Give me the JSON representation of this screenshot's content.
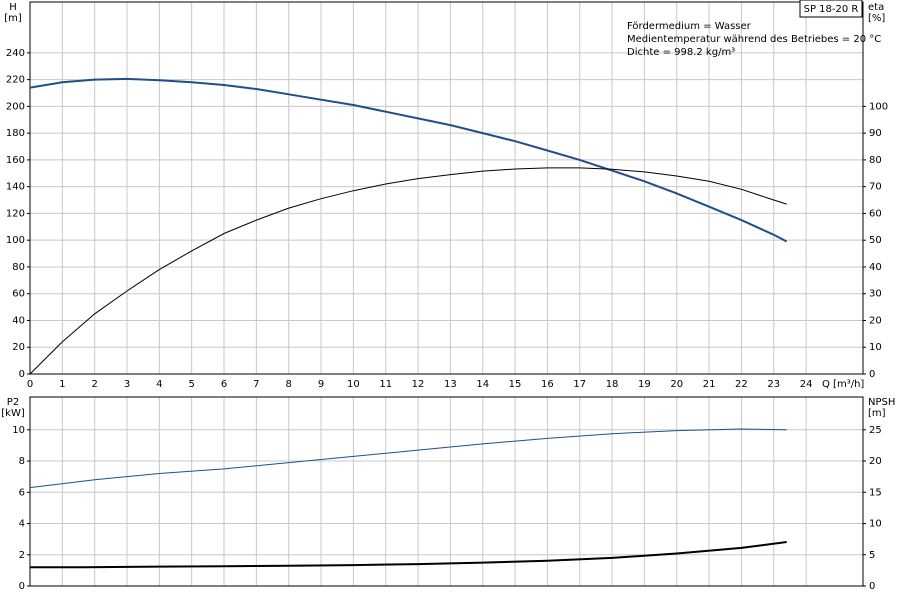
{
  "chart_data": [
    {
      "type": "line",
      "title": "SP 18-20 R",
      "annotations": [
        "Fördermedium = Wasser",
        "Medientemperatur während des Betriebes = 20 °C",
        "Dichte = 998.2 kg/m³"
      ],
      "ylabel": "H",
      "yunit": "[m]",
      "y2label": "eta",
      "y2unit": "[%]",
      "xlabel": "Q [m³/h]",
      "xlim": [
        0,
        25.76
      ],
      "xticks": [
        0,
        1,
        2,
        3,
        4,
        5,
        6,
        7,
        8,
        9,
        10,
        11,
        12,
        13,
        14,
        15,
        16,
        17,
        18,
        19,
        20,
        21,
        22,
        23,
        24
      ],
      "ylim": [
        0,
        278
      ],
      "yticks": [
        0,
        20,
        40,
        60,
        80,
        100,
        120,
        140,
        160,
        180,
        200,
        220,
        240
      ],
      "y2lim": [
        0,
        139
      ],
      "y2ticks": [
        0,
        10,
        20,
        30,
        40,
        50,
        60,
        70,
        80,
        90,
        100
      ],
      "grid": true,
      "series": [
        {
          "name": "H",
          "color": "#1f4f8a",
          "line_width": 2,
          "x": [
            0,
            1,
            2,
            3,
            4,
            5,
            6,
            7,
            8,
            9,
            10,
            11,
            12,
            13,
            14,
            15,
            16,
            17,
            18,
            19,
            20,
            21,
            22,
            23,
            23.4
          ],
          "values": [
            214,
            218,
            220,
            220.5,
            219.5,
            218,
            216,
            213,
            209,
            205,
            201,
            196,
            191,
            186,
            180,
            174,
            167,
            160,
            152,
            144,
            135,
            125,
            115,
            104,
            99
          ]
        },
        {
          "name": "eta",
          "color": "#000000",
          "line_width": 1,
          "axis": "y2",
          "x": [
            0,
            1,
            2,
            3,
            4,
            5,
            6,
            7,
            8,
            9,
            10,
            11,
            12,
            13,
            14,
            15,
            16,
            17,
            18,
            19,
            20,
            21,
            22,
            23,
            23.4
          ],
          "values": [
            0,
            12,
            22.5,
            31,
            39,
            46,
            52.5,
            57.5,
            62,
            65.5,
            68.5,
            71,
            73,
            74.5,
            75.8,
            76.6,
            77,
            77,
            76.5,
            75.5,
            74,
            72,
            69,
            65,
            63.5
          ]
        }
      ]
    },
    {
      "type": "line",
      "ylabel": "P2",
      "yunit": "[kW]",
      "y2label": "NPSH",
      "y2unit": "[m]",
      "xlim": [
        0,
        25.76
      ],
      "xticks": [
        0,
        1,
        2,
        3,
        4,
        5,
        6,
        7,
        8,
        9,
        10,
        11,
        12,
        13,
        14,
        15,
        16,
        17,
        18,
        19,
        20,
        21,
        22,
        23,
        24
      ],
      "ylim": [
        0,
        12.1
      ],
      "yticks": [
        0,
        2,
        4,
        6,
        8,
        10
      ],
      "y2lim": [
        0,
        30.25
      ],
      "y2ticks": [
        0,
        5,
        10,
        15,
        20,
        25
      ],
      "grid": true,
      "series": [
        {
          "name": "P2",
          "color": "#1f4f8a",
          "line_width": 1,
          "x": [
            0,
            2,
            4,
            6,
            8,
            10,
            12,
            14,
            16,
            18,
            20,
            22,
            23.4
          ],
          "values": [
            6.3,
            6.8,
            7.2,
            7.5,
            7.9,
            8.3,
            8.7,
            9.1,
            9.45,
            9.75,
            9.95,
            10.05,
            10.0
          ]
        },
        {
          "name": "NPSH",
          "color": "#000000",
          "line_width": 2,
          "axis": "y2",
          "x": [
            0,
            1.7,
            4,
            6,
            8,
            10,
            12,
            14,
            16,
            18,
            20,
            22,
            23.4
          ],
          "values": [
            3.0,
            3.0,
            3.1,
            3.15,
            3.25,
            3.35,
            3.5,
            3.75,
            4.05,
            4.5,
            5.2,
            6.1,
            7.05
          ]
        }
      ]
    }
  ]
}
